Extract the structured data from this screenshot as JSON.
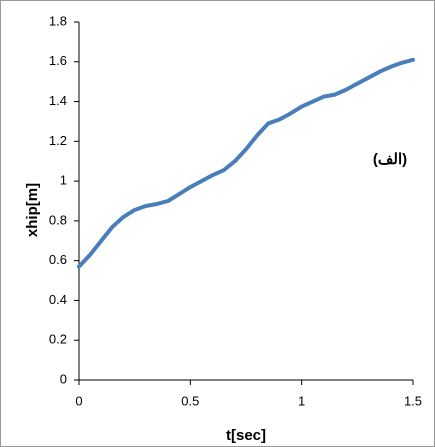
{
  "chart_data": {
    "type": "line",
    "annotation": "(الف)",
    "x_label": "t[sec]",
    "y_label": "xhip[m]",
    "x": [
      0,
      0.05,
      0.1,
      0.15,
      0.2,
      0.25,
      0.3,
      0.35,
      0.4,
      0.45,
      0.5,
      0.55,
      0.6,
      0.65,
      0.7,
      0.75,
      0.8,
      0.85,
      0.9,
      0.95,
      1.0,
      1.05,
      1.1,
      1.15,
      1.2,
      1.25,
      1.3,
      1.35,
      1.4,
      1.45,
      1.5
    ],
    "series": [
      {
        "color": "#4a7ebb",
        "values": [
          0.57,
          0.63,
          0.7,
          0.77,
          0.82,
          0.855,
          0.875,
          0.885,
          0.9,
          0.935,
          0.97,
          1.0,
          1.03,
          1.055,
          1.1,
          1.16,
          1.23,
          1.29,
          1.31,
          1.34,
          1.375,
          1.4,
          1.425,
          1.435,
          1.46,
          1.49,
          1.52,
          1.55,
          1.575,
          1.595,
          1.61
        ]
      }
    ],
    "xlim": [
      0,
      1.5
    ],
    "xticks": [
      0,
      0.5,
      1,
      1.5
    ],
    "ylim": [
      0,
      1.8
    ],
    "yticks": [
      0,
      0.2,
      0.4,
      0.6,
      0.8,
      1,
      1.2,
      1.4,
      1.6,
      1.8
    ],
    "grid": false
  }
}
